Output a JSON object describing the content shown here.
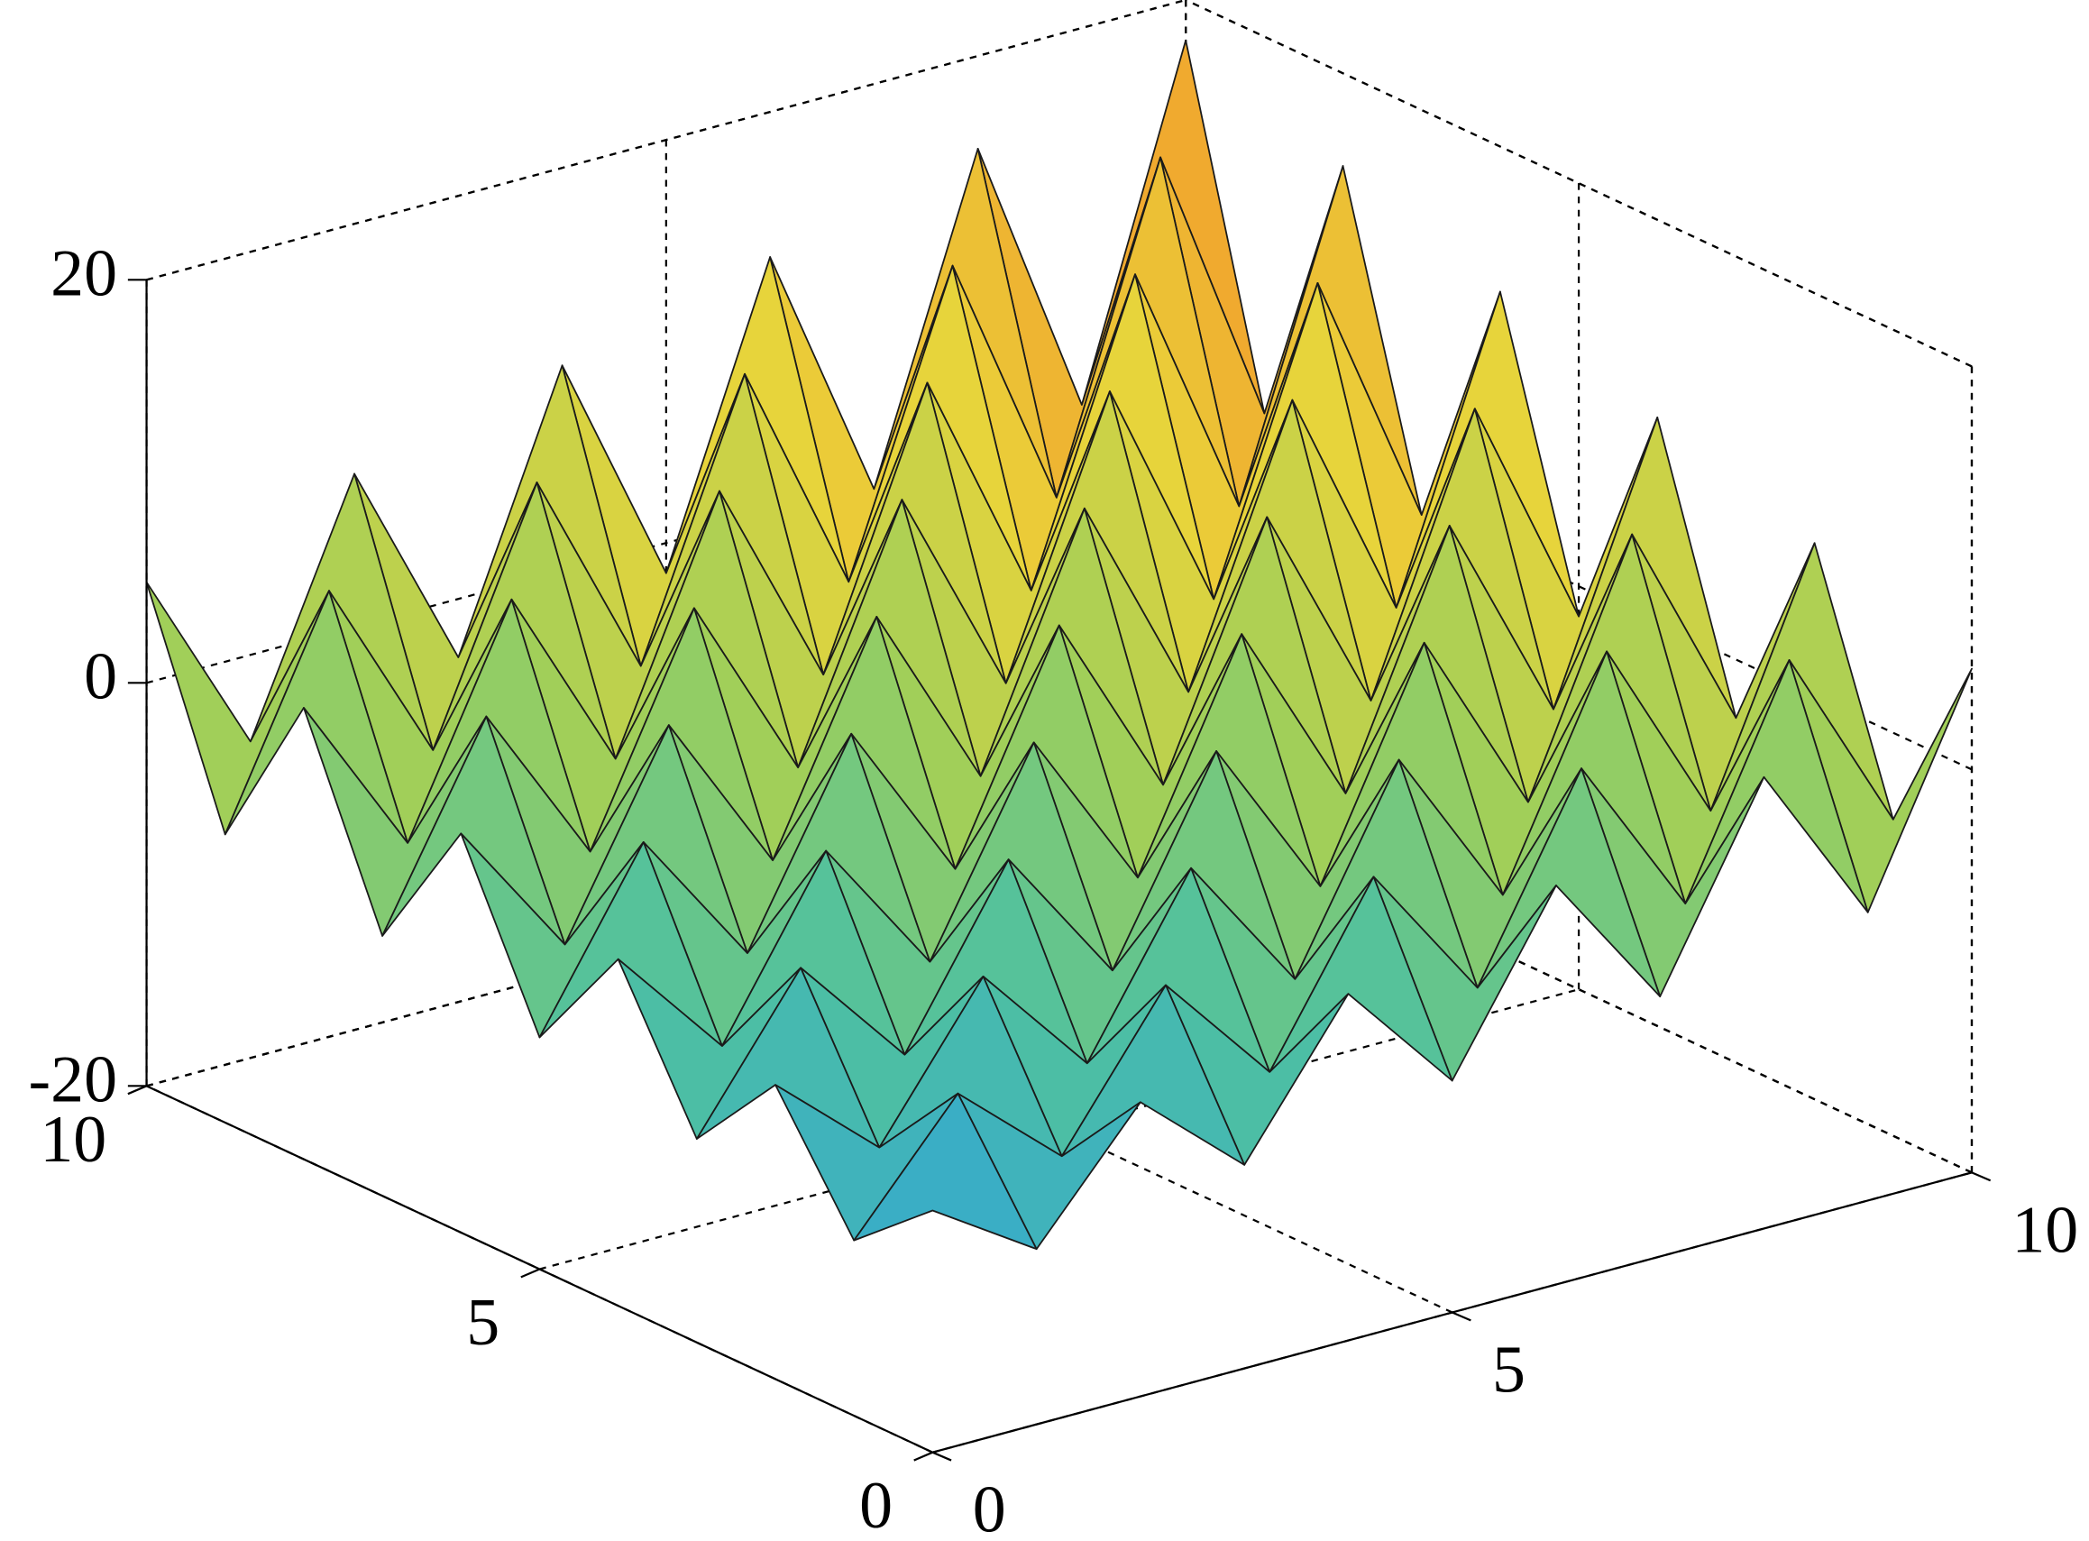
{
  "chart_data": {
    "type": "surface",
    "x": [
      0,
      1,
      2,
      3,
      4,
      5,
      6,
      7,
      8,
      9,
      10
    ],
    "y": [
      0,
      1,
      2,
      3,
      4,
      5,
      6,
      7,
      8,
      9,
      10
    ],
    "z": [
      [
        -8,
        -11.3,
        -5.4,
        -9.9,
        -2.8,
        -8.5,
        -0.2,
        -7.1,
        2.4,
        -5.7,
        5
      ],
      [
        -11.3,
        -5.4,
        -9.9,
        -2.8,
        -8.5,
        -0.2,
        -7.1,
        2.4,
        -5.7,
        5,
        -4.3
      ],
      [
        -5.4,
        -9.9,
        -2.8,
        -8.5,
        -0.2,
        -7.1,
        2.4,
        -5.7,
        5,
        -4.3,
        7.6
      ],
      [
        -9.9,
        -2.8,
        -8.5,
        -0.2,
        -7.1,
        2.4,
        -5.7,
        5,
        -4.3,
        7.6,
        -2.9
      ],
      [
        -2.8,
        -8.5,
        -0.2,
        -7.1,
        2.4,
        -5.7,
        5,
        -4.3,
        7.6,
        -2.9,
        10.2
      ],
      [
        -8.5,
        -0.2,
        -7.1,
        2.4,
        -5.7,
        5,
        -4.3,
        7.6,
        -2.9,
        10.2,
        -1.5
      ],
      [
        -0.2,
        -7.1,
        2.4,
        -5.7,
        5,
        -4.3,
        7.6,
        -2.9,
        10.2,
        -1.5,
        12.8
      ],
      [
        -7.1,
        2.4,
        -5.7,
        5,
        -4.3,
        7.6,
        -2.9,
        10.2,
        -1.5,
        12.8,
        -0.1
      ],
      [
        2.4,
        -5.7,
        5,
        -4.3,
        7.6,
        -2.9,
        10.2,
        -1.5,
        12.8,
        -0.1,
        15.4
      ],
      [
        -5.7,
        5,
        -4.3,
        7.6,
        -2.9,
        10.2,
        -1.5,
        12.8,
        -0.1,
        15.4,
        1.3
      ],
      [
        5,
        -4.3,
        7.6,
        -2.9,
        10.2,
        -1.5,
        12.8,
        -0.1,
        15.4,
        1.3,
        18
      ]
    ],
    "xlim": [
      0,
      10
    ],
    "xticks": [
      0,
      5,
      10
    ],
    "ylim": [
      0,
      10
    ],
    "yticks": [
      0,
      5,
      10
    ],
    "zlim": [
      -20,
      20
    ],
    "zticks": [
      -20,
      0,
      20
    ],
    "grid": true,
    "colormap": [
      "#3e4fb8",
      "#2fa4d9",
      "#4fc1a0",
      "#9fcf5a",
      "#e9d43a",
      "#f39a2b",
      "#d9281c"
    ]
  }
}
